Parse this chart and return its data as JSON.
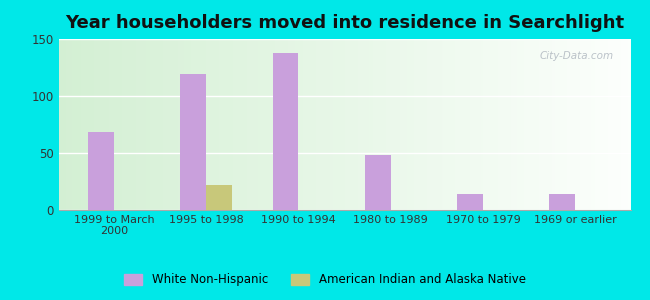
{
  "title": "Year householders moved into residence in Searchlight",
  "categories": [
    "1999 to March\n2000",
    "1995 to 1998",
    "1990 to 1994",
    "1980 to 1989",
    "1970 to 1979",
    "1969 or earlier"
  ],
  "white_non_hispanic": [
    68,
    119,
    138,
    48,
    14,
    14
  ],
  "american_indian": [
    0,
    22,
    0,
    0,
    0,
    0
  ],
  "bar_color_white": "#c9a0dc",
  "bar_color_indian": "#c8c87a",
  "outer_bg": "#00e8e8",
  "ylim": [
    0,
    150
  ],
  "yticks": [
    0,
    50,
    100,
    150
  ],
  "title_fontsize": 13,
  "legend_labels": [
    "White Non-Hispanic",
    "American Indian and Alaska Native"
  ],
  "watermark": "City-Data.com",
  "bar_width": 0.28
}
